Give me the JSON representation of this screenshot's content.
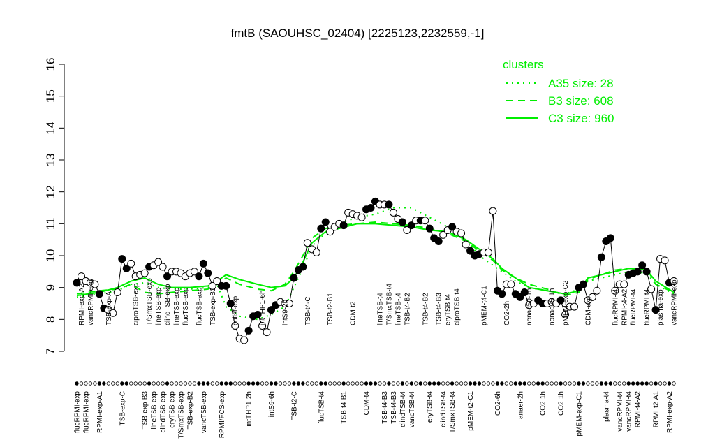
{
  "chart_data": {
    "type": "line",
    "title": "fmtB (SAOUHSC_02404) [2225123,2232559,-1]",
    "ylim": [
      7,
      16
    ],
    "yticks": [
      7,
      8,
      9,
      10,
      11,
      12,
      13,
      14,
      15,
      16
    ],
    "legend": {
      "title": "clusters",
      "position": "topright"
    },
    "categories": [
      "flucRPMI-exp",
      "RPMI-exp-A2",
      "flucRPMI-exp",
      "vancRPMI-exp",
      null,
      "RPMI-exp-A1",
      null,
      "TSB-exp-A",
      null,
      null,
      "TSB-exp-C",
      null,
      null,
      "ciproTSB-exp",
      null,
      "TSB-exp-B3",
      "T/SmxTSB-exp",
      "lineTSB-exp",
      "lineTSB-exp",
      "clindTSB-exp",
      "clindTSB-exp",
      "eryTSB-exp",
      "lineTSB-exp",
      "T/SmxTSB-exp",
      "flucTSB-exp",
      "TSB-exp-B2",
      null,
      "flucTSB-exp",
      "vancTSB-exp",
      null,
      "TSB-exp-B1",
      null,
      "RPMI/FCS-exp",
      null,
      null,
      "colist-exp",
      null,
      null,
      "intTHP1-2h",
      null,
      null,
      "intTHP1-6h",
      null,
      "intS9-6h",
      null,
      null,
      "intS9-2h",
      null,
      "TSB-t2-C",
      null,
      null,
      "TSB-t4-C",
      null,
      null,
      "flucTSB-t4",
      null,
      "TSB-t2-B1",
      null,
      null,
      "TSB-t4-B1",
      null,
      "CDM-t2",
      null,
      null,
      "CDM-t4",
      null,
      null,
      "lineTSB-t4",
      "TSB-t4-B3",
      "T/SmxTSB-t4",
      "TSB-t4-B3",
      "lineTSB-t4",
      "clindTSB-t4",
      "TSB-t4-B2",
      "vancTSB-t4",
      null,
      null,
      "TSB-t4-B2",
      "eryTSB-t4",
      null,
      "TSB-t4-B3",
      "clindTSB-t4",
      "eryTSB-t4",
      "T/SmxTSB-t4",
      "ciproTSB-t4",
      null,
      null,
      "pMEM-t2-C1",
      null,
      null,
      "pMEM-t4-C1",
      null,
      null,
      "CO2-6h",
      null,
      "CO2-2h",
      null,
      null,
      "anaer-2h",
      null,
      "nonad50-1h",
      null,
      null,
      "CO2-1h",
      null,
      "nonad25-1h",
      null,
      "CO2-1h",
      "pMEM-exp-C2",
      null,
      null,
      "pMEM-exp-C1",
      null,
      "CDM-exp",
      null,
      null,
      null,
      "plasma-t4",
      null,
      "flucRPMI-t4",
      "vancRPMI-t4",
      "RPMI-t4-A2",
      "vancRPMI-t4",
      "flucRPMI-t4",
      "RPMI-t4-A2",
      null,
      "flucRPMI-t4",
      null,
      "RPMI-t2-A1",
      "plasma-exp",
      null,
      "RPMI-exp-A2",
      "vancRPMI-exp"
    ],
    "values": [
      9.15,
      9.35,
      9.2,
      9.15,
      9.1,
      8.8,
      8.35,
      8.3,
      8.2,
      8.85,
      9.9,
      9.6,
      9.75,
      9.35,
      9.4,
      9.45,
      9.65,
      9.7,
      9.8,
      9.65,
      9.35,
      9.5,
      9.5,
      9.45,
      9.35,
      9.45,
      9.5,
      9.35,
      9.75,
      9.45,
      9.05,
      9.2,
      9.05,
      9.05,
      8.5,
      7.8,
      7.4,
      7.35,
      7.65,
      8.1,
      8.15,
      7.8,
      7.6,
      8.3,
      8.45,
      8.55,
      8.5,
      8.5,
      9.3,
      9.55,
      9.65,
      10.4,
      10.2,
      10.1,
      10.85,
      11.05,
      10.75,
      10.9,
      11.0,
      10.95,
      11.35,
      11.3,
      11.25,
      11.2,
      11.45,
      11.5,
      11.7,
      11.6,
      11.6,
      11.6,
      11.35,
      11.15,
      11.05,
      10.8,
      10.95,
      11.1,
      11.1,
      11.1,
      10.85,
      10.55,
      10.45,
      10.65,
      10.8,
      10.9,
      10.75,
      10.7,
      10.35,
      10.15,
      10.0,
      10.05,
      10.1,
      10.1,
      11.4,
      8.9,
      8.8,
      9.1,
      9.1,
      8.8,
      8.7,
      8.85,
      8.45,
      8.5,
      8.6,
      8.5,
      8.5,
      8.55,
      8.5,
      8.6,
      8.15,
      8.4,
      8.4,
      9.0,
      9.1,
      8.6,
      8.7,
      8.9,
      9.95,
      10.45,
      10.55,
      8.9,
      9.1,
      9.1,
      9.4,
      9.45,
      9.5,
      9.7,
      9.5,
      8.95,
      8.3,
      9.9,
      9.85,
      9.15,
      9.2
    ],
    "fills": [
      "black",
      "white",
      "white",
      "white",
      "white",
      "black",
      "black",
      "white",
      "white",
      "white",
      "black",
      "black",
      "white",
      "white",
      "white",
      "white",
      "black",
      "white",
      "white",
      "white",
      "black",
      "white",
      "white",
      "white",
      "white",
      "white",
      "white",
      "black",
      "black",
      "black",
      "white",
      "white",
      "black",
      "black",
      "black",
      "white",
      "white",
      "white",
      "black",
      "black",
      "black",
      "white",
      "white",
      "black",
      "black",
      "white",
      "white",
      "white",
      "black",
      "black",
      "black",
      "white",
      "white",
      "white",
      "black",
      "black",
      "white",
      "white",
      "white",
      "black",
      "white",
      "white",
      "white",
      "white",
      "black",
      "black",
      "black",
      "white",
      "white",
      "black",
      "white",
      "white",
      "black",
      "white",
      "black",
      "white",
      "black",
      "white",
      "black",
      "black",
      "black",
      "white",
      "white",
      "black",
      "white",
      "white",
      "white",
      "black",
      "black",
      "black",
      "white",
      "white",
      "white",
      "black",
      "black",
      "white",
      "white",
      "black",
      "black",
      "black",
      "white",
      "white",
      "black",
      "black",
      "white",
      "white",
      "white",
      "black",
      "white",
      "white",
      "white",
      "black",
      "black",
      "white",
      "white",
      "white",
      "black",
      "black",
      "black",
      "white",
      "white",
      "white",
      "black",
      "black",
      "black",
      "black",
      "black",
      "white",
      "black",
      "white",
      "white",
      "black",
      "white"
    ],
    "series": [
      {
        "name": "A35 size: 28",
        "color": "#00ee00",
        "dash": "dotted",
        "x": [
          0,
          5,
          9,
          12,
          15,
          18,
          21,
          25,
          29,
          31,
          33,
          36,
          40,
          43,
          46,
          48,
          50,
          52,
          55,
          58,
          62,
          66,
          70,
          74,
          78,
          82,
          86,
          89,
          92,
          94,
          97,
          100,
          104,
          108,
          111,
          113,
          116,
          119,
          122,
          126,
          128,
          132
        ],
        "values": [
          8.7,
          8.8,
          8.9,
          9.1,
          9.15,
          9.0,
          8.95,
          8.95,
          9.0,
          9.1,
          8.4,
          8.1,
          8.0,
          8.15,
          8.4,
          9.0,
          9.6,
          10.3,
          10.7,
          11.0,
          11.2,
          11.3,
          11.5,
          11.5,
          11.2,
          10.9,
          10.5,
          10.0,
          9.7,
          9.5,
          9.2,
          9.0,
          8.9,
          8.8,
          8.95,
          9.2,
          9.3,
          9.4,
          9.5,
          9.45,
          9.1,
          8.8
        ]
      },
      {
        "name": "B3 size: 608",
        "color": "#00ee00",
        "dash": "dashed",
        "x": [
          0,
          5,
          9,
          12,
          15,
          18,
          21,
          25,
          29,
          31,
          33,
          36,
          40,
          43,
          46,
          48,
          50,
          52,
          55,
          58,
          62,
          66,
          70,
          74,
          78,
          82,
          86,
          89,
          92,
          94,
          97,
          100,
          104,
          108,
          111,
          113,
          116,
          119,
          122,
          126,
          128,
          132
        ],
        "values": [
          8.8,
          8.9,
          8.95,
          9.1,
          8.85,
          8.8,
          8.85,
          8.9,
          8.95,
          9.1,
          9.3,
          9.1,
          8.95,
          8.9,
          9.1,
          9.5,
          10.0,
          10.55,
          10.85,
          10.95,
          11.0,
          11.05,
          11.0,
          10.95,
          10.85,
          10.7,
          10.45,
          10.15,
          9.85,
          9.55,
          9.3,
          9.1,
          8.95,
          8.75,
          8.85,
          9.25,
          9.4,
          9.55,
          9.6,
          9.6,
          9.1,
          8.85
        ]
      },
      {
        "name": "C3 size: 960",
        "color": "#00ee00",
        "dash": "solid",
        "x": [
          0,
          5,
          9,
          12,
          15,
          18,
          21,
          25,
          29,
          31,
          33,
          36,
          40,
          43,
          46,
          48,
          50,
          52,
          55,
          58,
          62,
          66,
          70,
          74,
          78,
          82,
          86,
          89,
          92,
          94,
          97,
          100,
          104,
          108,
          111,
          113,
          116,
          119,
          122,
          126,
          128,
          132
        ],
        "values": [
          8.75,
          8.85,
          9.0,
          9.2,
          9.3,
          9.1,
          9.0,
          9.0,
          9.05,
          9.2,
          9.4,
          9.25,
          9.1,
          9.0,
          9.05,
          9.3,
          9.8,
          10.4,
          10.75,
          10.85,
          11.0,
          11.0,
          10.95,
          10.9,
          10.8,
          10.75,
          10.5,
          10.2,
          9.9,
          9.6,
          9.3,
          9.0,
          8.9,
          8.8,
          8.9,
          9.3,
          9.4,
          9.5,
          9.6,
          9.55,
          9.2,
          8.85
        ]
      }
    ]
  }
}
